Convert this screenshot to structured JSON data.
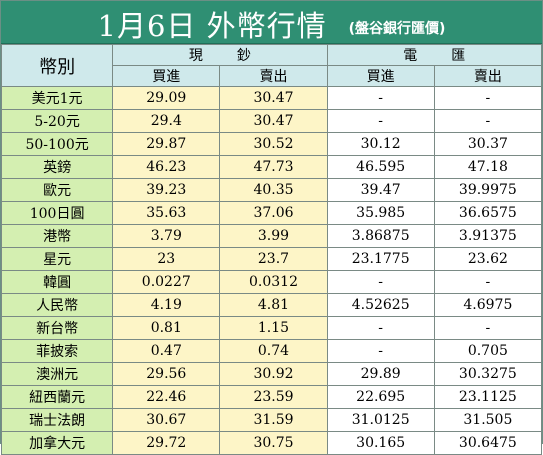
{
  "title": {
    "main": "1月6日 外幣行情",
    "sub": "(盤谷銀行匯價)"
  },
  "header": {
    "currency_label": "幣別",
    "cash_group": "現鈔",
    "wire_group": "電匯",
    "buy_label": "買進",
    "sell_label": "賣出"
  },
  "rows": [
    {
      "currency": "美元1元",
      "cash_buy": "29.09",
      "cash_sell": "30.47",
      "wire_buy": "-",
      "wire_sell": "-"
    },
    {
      "currency": "5-20元",
      "cash_buy": "29.4",
      "cash_sell": "30.47",
      "wire_buy": "-",
      "wire_sell": "-"
    },
    {
      "currency": "50-100元",
      "cash_buy": "29.87",
      "cash_sell": "30.52",
      "wire_buy": "30.12",
      "wire_sell": "30.37"
    },
    {
      "currency": "英鎊",
      "cash_buy": "46.23",
      "cash_sell": "47.73",
      "wire_buy": "46.595",
      "wire_sell": "47.18"
    },
    {
      "currency": "歐元",
      "cash_buy": "39.23",
      "cash_sell": "40.35",
      "wire_buy": "39.47",
      "wire_sell": "39.9975"
    },
    {
      "currency": "100日圓",
      "cash_buy": "35.63",
      "cash_sell": "37.06",
      "wire_buy": "35.985",
      "wire_sell": "36.6575"
    },
    {
      "currency": "港幣",
      "cash_buy": "3.79",
      "cash_sell": "3.99",
      "wire_buy": "3.86875",
      "wire_sell": "3.91375"
    },
    {
      "currency": "星元",
      "cash_buy": "23",
      "cash_sell": "23.7",
      "wire_buy": "23.1775",
      "wire_sell": "23.62"
    },
    {
      "currency": "韓圓",
      "cash_buy": "0.0227",
      "cash_sell": "0.0312",
      "wire_buy": "-",
      "wire_sell": "-"
    },
    {
      "currency": "人民幣",
      "cash_buy": "4.19",
      "cash_sell": "4.81",
      "wire_buy": "4.52625",
      "wire_sell": "4.6975"
    },
    {
      "currency": "新台幣",
      "cash_buy": "0.81",
      "cash_sell": "1.15",
      "wire_buy": "-",
      "wire_sell": "-"
    },
    {
      "currency": "菲披索",
      "cash_buy": "0.47",
      "cash_sell": "0.74",
      "wire_buy": "-",
      "wire_sell": "0.705"
    },
    {
      "currency": "澳洲元",
      "cash_buy": "29.56",
      "cash_sell": "30.92",
      "wire_buy": "29.89",
      "wire_sell": "30.3275"
    },
    {
      "currency": "紐西蘭元",
      "cash_buy": "22.46",
      "cash_sell": "23.59",
      "wire_buy": "22.695",
      "wire_sell": "23.1125"
    },
    {
      "currency": "瑞士法朗",
      "cash_buy": "30.67",
      "cash_sell": "31.59",
      "wire_buy": "31.0125",
      "wire_sell": "31.505"
    },
    {
      "currency": "加拿大元",
      "cash_buy": "29.72",
      "cash_sell": "30.75",
      "wire_buy": "30.165",
      "wire_sell": "30.6475"
    }
  ]
}
